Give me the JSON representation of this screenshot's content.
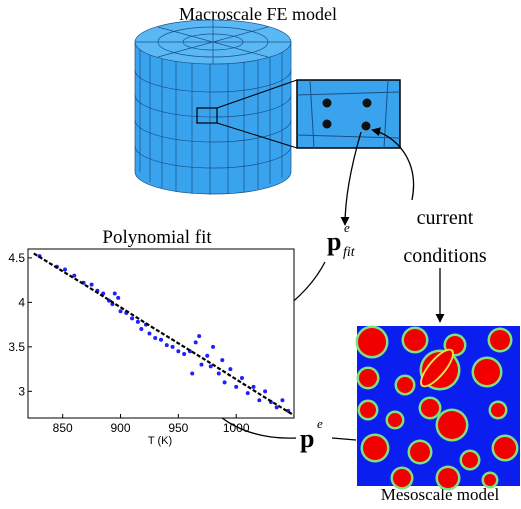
{
  "header": {
    "title": "Macroscale FE model"
  },
  "labels": {
    "current_conditions": [
      "current",
      "conditions"
    ],
    "mesoscale": "Mesoscale model",
    "p_fit": {
      "base": "p",
      "sup": "e",
      "sub": "fit"
    },
    "p_e": {
      "base": "p",
      "sup": "e"
    }
  },
  "chart_data": {
    "type": "scatter",
    "title": "Polynomial fit",
    "x_label": "T (K)",
    "xlim": [
      820,
      1050
    ],
    "ylim": [
      2.7,
      4.6
    ],
    "xticks": [
      850,
      900,
      950,
      1000
    ],
    "yticks": [
      3,
      3.5,
      4,
      4.5
    ],
    "series": [
      {
        "color": "#1f1fff",
        "x": [
          830,
          845,
          852,
          860,
          868,
          875,
          880,
          885,
          890,
          893,
          895,
          898,
          900,
          905,
          910,
          915,
          918,
          922,
          925,
          930,
          935,
          940,
          945,
          950,
          955,
          960,
          962,
          965,
          968,
          970,
          975,
          978,
          980,
          985,
          988,
          990,
          995,
          1000,
          1005,
          1010,
          1015,
          1020,
          1025,
          1030,
          1035,
          1040,
          1045
        ],
        "values": [
          4.52,
          4.4,
          4.37,
          4.3,
          4.22,
          4.2,
          4.13,
          4.1,
          4.02,
          3.98,
          4.1,
          4.05,
          3.9,
          3.88,
          3.82,
          3.78,
          3.7,
          3.75,
          3.65,
          3.6,
          3.58,
          3.52,
          3.5,
          3.45,
          3.42,
          3.45,
          3.2,
          3.55,
          3.62,
          3.3,
          3.4,
          3.28,
          3.5,
          3.2,
          3.35,
          3.1,
          3.25,
          3.05,
          3.15,
          2.98,
          3.05,
          2.9,
          3.0,
          2.88,
          2.82,
          2.9,
          2.78
        ]
      },
      {
        "type": "line",
        "color": "#000000",
        "dashed": true,
        "x": [
          825,
          875,
          925,
          975,
          1025,
          1050
        ],
        "values": [
          4.55,
          4.15,
          3.74,
          3.34,
          2.93,
          2.73
        ]
      }
    ]
  }
}
